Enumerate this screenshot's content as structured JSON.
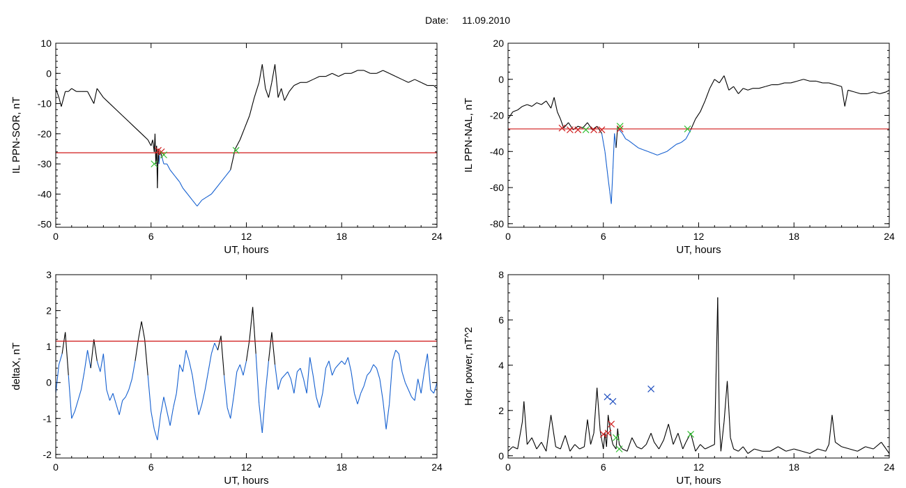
{
  "header": {
    "date_label": "Date:",
    "date_value": "11.09.2010"
  },
  "colors": {
    "trace": "#000000",
    "below": "#1560d0",
    "threshold": "#d01818",
    "marker_red": "#d02020",
    "marker_green": "#30c030",
    "marker_blue": "#2050c0"
  },
  "chart_data": [
    {
      "type": "line",
      "ylabel": "IL PPN-SOR, nT",
      "xlabel": "UT, hours",
      "xlim": [
        0,
        24
      ],
      "ylim": [
        -51,
        10
      ],
      "xticks": [
        0,
        6,
        12,
        18,
        24
      ],
      "yticks": [
        10,
        0,
        -10,
        -20,
        -30,
        -40,
        -50
      ],
      "threshold": -26.3,
      "series": [
        {
          "x": [
            0,
            0.2,
            0.35,
            0.6,
            0.8,
            1,
            1.3,
            1.6,
            2,
            2.4,
            2.6,
            3,
            3.4,
            3.8,
            4.2,
            4.6,
            5,
            5.4,
            5.8,
            6,
            6.1,
            6.2,
            6.25,
            6.3,
            6.35,
            6.4,
            6.45,
            6.5,
            6.55,
            6.6,
            6.7,
            6.8,
            7,
            7.2,
            7.5,
            7.8,
            8,
            8.3,
            8.6,
            8.9,
            9.2,
            9.5,
            9.8,
            10.1,
            10.4,
            10.7,
            11,
            11.3,
            11.6,
            11.9,
            12.2,
            12.5,
            12.8,
            13,
            13.2,
            13.4,
            13.6,
            13.8,
            14,
            14.2,
            14.4,
            14.7,
            15,
            15.4,
            15.8,
            16.2,
            16.6,
            17,
            17.4,
            17.8,
            18.2,
            18.6,
            19,
            19.4,
            19.8,
            20.2,
            20.6,
            21,
            21.4,
            21.8,
            22.2,
            22.6,
            23,
            23.4,
            23.8,
            24
          ],
          "y": [
            -5,
            -8,
            -11,
            -6,
            -6,
            -5,
            -6,
            -6,
            -6,
            -10,
            -5,
            -8,
            -10,
            -12,
            -14,
            -16,
            -18,
            -20,
            -22,
            -24,
            -22,
            -26,
            -20,
            -30,
            -24,
            -38,
            -25,
            -30,
            -27,
            -26,
            -28,
            -30,
            -30,
            -32,
            -34,
            -36,
            -38,
            -40,
            -42,
            -44,
            -42,
            -41,
            -40,
            -38,
            -36,
            -34,
            -32,
            -25,
            -22,
            -18,
            -14,
            -8,
            -3,
            3,
            -5,
            -8,
            -3,
            3,
            -8,
            -5,
            -9,
            -6,
            -4,
            -3,
            -3,
            -2,
            -1,
            -1,
            0,
            -1,
            0,
            0,
            1,
            1,
            0,
            0,
            1,
            0,
            -1,
            -2,
            -3,
            -2,
            -3,
            -4,
            -4,
            -5
          ]
        }
      ],
      "markers": [
        {
          "x": 6.2,
          "y": -30,
          "color": "green"
        },
        {
          "x": 6.45,
          "y": -25.5,
          "color": "red"
        },
        {
          "x": 6.65,
          "y": -26,
          "color": "red"
        },
        {
          "x": 6.8,
          "y": -27,
          "color": "green"
        },
        {
          "x": 11.35,
          "y": -25.5,
          "color": "green"
        }
      ]
    },
    {
      "type": "line",
      "ylabel": "IL PPN-NAL, nT",
      "xlabel": "UT, hours",
      "xlim": [
        0,
        24
      ],
      "ylim": [
        -82,
        20
      ],
      "xticks": [
        0,
        6,
        12,
        18,
        24
      ],
      "yticks": [
        20,
        0,
        -20,
        -40,
        -60,
        -80
      ],
      "threshold": -27.5,
      "series": [
        {
          "x": [
            0,
            0.3,
            0.6,
            0.9,
            1.2,
            1.5,
            1.8,
            2.1,
            2.4,
            2.7,
            2.9,
            3.1,
            3.3,
            3.5,
            3.8,
            4.1,
            4.4,
            4.7,
            5,
            5.3,
            5.6,
            5.9,
            6.1,
            6.3,
            6.4,
            6.5,
            6.6,
            6.7,
            6.8,
            6.9,
            7,
            7.2,
            7.4,
            7.6,
            7.9,
            8.2,
            8.5,
            8.8,
            9.1,
            9.4,
            9.7,
            10,
            10.3,
            10.6,
            10.9,
            11.2,
            11.5,
            11.8,
            12.1,
            12.4,
            12.7,
            13,
            13.3,
            13.6,
            13.9,
            14.2,
            14.5,
            14.8,
            15.1,
            15.4,
            15.8,
            16.2,
            16.6,
            17,
            17.4,
            17.8,
            18.2,
            18.6,
            19,
            19.4,
            19.8,
            20.2,
            20.6,
            21,
            21.2,
            21.4,
            21.8,
            22.2,
            22.6,
            23,
            23.4,
            23.8,
            24
          ],
          "y": [
            -22,
            -18,
            -17,
            -15,
            -14,
            -15,
            -13,
            -14,
            -12,
            -16,
            -10,
            -18,
            -22,
            -27,
            -24,
            -28,
            -26,
            -27,
            -24,
            -28,
            -26,
            -30,
            -40,
            -55,
            -62,
            -69,
            -50,
            -30,
            -38,
            -26,
            -28,
            -30,
            -33,
            -34,
            -36,
            -38,
            -39,
            -40,
            -41,
            -42,
            -41,
            -40,
            -38,
            -36,
            -35,
            -33,
            -28,
            -22,
            -18,
            -12,
            -5,
            0,
            -2,
            2,
            -6,
            -4,
            -8,
            -5,
            -6,
            -5,
            -5,
            -4,
            -3,
            -3,
            -2,
            -2,
            -1,
            0,
            -1,
            -1,
            -2,
            -2,
            -3,
            -4,
            -15,
            -6,
            -7,
            -8,
            -8,
            -7,
            -8,
            -7,
            -6
          ]
        }
      ],
      "markers": [
        {
          "x": 3.4,
          "y": -27,
          "color": "red"
        },
        {
          "x": 3.9,
          "y": -28,
          "color": "red"
        },
        {
          "x": 4.4,
          "y": -28,
          "color": "red"
        },
        {
          "x": 4.9,
          "y": -28,
          "color": "green"
        },
        {
          "x": 5.4,
          "y": -28,
          "color": "red"
        },
        {
          "x": 5.9,
          "y": -28,
          "color": "red"
        },
        {
          "x": 7.05,
          "y": -27.5,
          "color": "red"
        },
        {
          "x": 7.05,
          "y": -26,
          "color": "green"
        },
        {
          "x": 11.3,
          "y": -27.5,
          "color": "green"
        }
      ]
    },
    {
      "type": "line",
      "ylabel": "deltaX, nT",
      "xlabel": "UT, hours",
      "xlim": [
        0,
        24
      ],
      "ylim": [
        -2.1,
        3
      ],
      "xticks": [
        0,
        6,
        12,
        18,
        24
      ],
      "yticks": [
        3,
        2,
        1,
        0,
        -1,
        -2
      ],
      "threshold": 1.15,
      "series": [
        {
          "x": [
            0,
            0.2,
            0.4,
            0.6,
            0.8,
            1,
            1.2,
            1.4,
            1.6,
            1.8,
            2,
            2.2,
            2.4,
            2.6,
            2.8,
            3,
            3.2,
            3.4,
            3.6,
            3.8,
            4,
            4.2,
            4.4,
            4.6,
            4.8,
            5,
            5.2,
            5.4,
            5.6,
            5.8,
            6,
            6.2,
            6.4,
            6.6,
            6.8,
            7,
            7.2,
            7.4,
            7.6,
            7.8,
            8,
            8.2,
            8.4,
            8.6,
            8.8,
            9,
            9.2,
            9.4,
            9.6,
            9.8,
            10,
            10.2,
            10.4,
            10.6,
            10.8,
            11,
            11.2,
            11.4,
            11.6,
            11.8,
            12,
            12.2,
            12.4,
            12.6,
            12.8,
            13,
            13.2,
            13.4,
            13.6,
            13.8,
            14,
            14.2,
            14.4,
            14.6,
            14.8,
            15,
            15.2,
            15.4,
            15.6,
            15.8,
            16,
            16.2,
            16.4,
            16.6,
            16.8,
            17,
            17.2,
            17.4,
            17.6,
            17.8,
            18,
            18.2,
            18.4,
            18.6,
            18.8,
            19,
            19.2,
            19.4,
            19.6,
            19.8,
            20,
            20.2,
            20.4,
            20.6,
            20.8,
            21,
            21.2,
            21.4,
            21.6,
            21.8,
            22,
            22.2,
            22.4,
            22.6,
            22.8,
            23,
            23.2,
            23.4,
            23.6,
            23.8,
            24
          ],
          "y": [
            -0.3,
            0.5,
            0.8,
            1.4,
            0.2,
            -1,
            -0.8,
            -0.5,
            -0.2,
            0.3,
            0.9,
            0.4,
            1.2,
            0.6,
            0.3,
            0.8,
            -0.2,
            -0.5,
            -0.3,
            -0.6,
            -0.9,
            -0.5,
            -0.4,
            -0.2,
            0.1,
            0.6,
            1.2,
            1.7,
            1.2,
            0.2,
            -0.8,
            -1.3,
            -1.6,
            -0.9,
            -0.4,
            -0.8,
            -1.2,
            -0.7,
            -0.3,
            0.5,
            0.3,
            0.9,
            0.6,
            0.2,
            -0.4,
            -0.9,
            -0.6,
            -0.2,
            0.3,
            0.8,
            1.1,
            0.9,
            1.3,
            0.2,
            -0.7,
            -1,
            -0.4,
            0.3,
            0.5,
            0.2,
            0.6,
            1.2,
            2.1,
            0.8,
            -0.6,
            -1.4,
            -0.3,
            0.6,
            1.4,
            0.5,
            -0.2,
            0.1,
            0.2,
            0.3,
            0.1,
            -0.3,
            0.3,
            0.4,
            0.1,
            -0.3,
            0.7,
            0.2,
            -0.4,
            -0.7,
            -0.3,
            0.4,
            0.6,
            0.2,
            0.4,
            0.5,
            0.6,
            0.5,
            0.7,
            0.3,
            -0.3,
            -0.6,
            -0.3,
            -0.1,
            0.2,
            0.3,
            0.5,
            0.4,
            0.1,
            -0.5,
            -1.3,
            -0.6,
            0.6,
            0.9,
            0.8,
            0.3,
            0,
            -0.2,
            -0.4,
            -0.5,
            0.1,
            -0.3,
            0.3,
            0.8,
            -0.2,
            -0.3,
            0
          ]
        }
      ]
    },
    {
      "type": "line",
      "ylabel": "Hor. power, nT^2",
      "xlabel": "UT, hours",
      "xlim": [
        0,
        24
      ],
      "ylim": [
        -0.1,
        8
      ],
      "xticks": [
        0,
        6,
        12,
        18,
        24
      ],
      "yticks": [
        8,
        6,
        4,
        2,
        0
      ],
      "series": [
        {
          "x": [
            0,
            0.3,
            0.6,
            0.9,
            1,
            1.2,
            1.5,
            1.8,
            2.1,
            2.4,
            2.7,
            3,
            3.3,
            3.6,
            3.9,
            4.2,
            4.5,
            4.8,
            5,
            5.2,
            5.4,
            5.6,
            5.8,
            6,
            6.1,
            6.2,
            6.3,
            6.4,
            6.5,
            6.6,
            6.7,
            6.8,
            6.9,
            7,
            7.2,
            7.5,
            7.8,
            8.1,
            8.4,
            8.7,
            9,
            9.2,
            9.5,
            9.8,
            10.1,
            10.4,
            10.7,
            11,
            11.2,
            11.5,
            11.8,
            12.1,
            12.4,
            12.7,
            13,
            13.2,
            13.3,
            13.4,
            13.6,
            13.8,
            14,
            14.2,
            14.5,
            14.8,
            15.1,
            15.5,
            16,
            16.5,
            17,
            17.5,
            18,
            18.5,
            19,
            19.5,
            20,
            20.2,
            20.4,
            20.6,
            21,
            21.5,
            22,
            22.5,
            23,
            23.5,
            24
          ],
          "y": [
            0.2,
            0.4,
            0.3,
            1.5,
            2.4,
            0.5,
            0.8,
            0.3,
            0.6,
            0.2,
            1.8,
            0.4,
            0.3,
            0.9,
            0.2,
            0.5,
            0.3,
            0.4,
            1.6,
            0.5,
            1.0,
            3.0,
            1.1,
            0.3,
            1.0,
            0.4,
            1.8,
            1.3,
            0.8,
            0.5,
            0.4,
            0.3,
            1.2,
            0.5,
            0.3,
            0.2,
            0.8,
            0.4,
            0.3,
            0.5,
            1.0,
            0.6,
            0.3,
            0.7,
            1.4,
            0.5,
            1.0,
            0.3,
            0.6,
            1.0,
            0.2,
            0.5,
            0.3,
            0.4,
            0.5,
            7.0,
            1.5,
            0.2,
            1.5,
            3.3,
            0.8,
            0.3,
            0.2,
            0.4,
            0.1,
            0.3,
            0.2,
            0.2,
            0.4,
            0.2,
            0.3,
            0.2,
            0.1,
            0.3,
            0.2,
            0.5,
            1.8,
            0.6,
            0.4,
            0.3,
            0.2,
            0.4,
            0.3,
            0.6,
            0.1
          ]
        }
      ],
      "markers": [
        {
          "x": 6.25,
          "y": 2.6,
          "color": "blue"
        },
        {
          "x": 6.6,
          "y": 2.4,
          "color": "blue"
        },
        {
          "x": 9.0,
          "y": 2.95,
          "color": "blue"
        },
        {
          "x": 6.0,
          "y": 0.95,
          "color": "red"
        },
        {
          "x": 6.3,
          "y": 1.0,
          "color": "red"
        },
        {
          "x": 6.5,
          "y": 1.4,
          "color": "red"
        },
        {
          "x": 6.8,
          "y": 0.8,
          "color": "green"
        },
        {
          "x": 7.0,
          "y": 0.3,
          "color": "green"
        },
        {
          "x": 11.5,
          "y": 0.95,
          "color": "green"
        }
      ]
    }
  ]
}
